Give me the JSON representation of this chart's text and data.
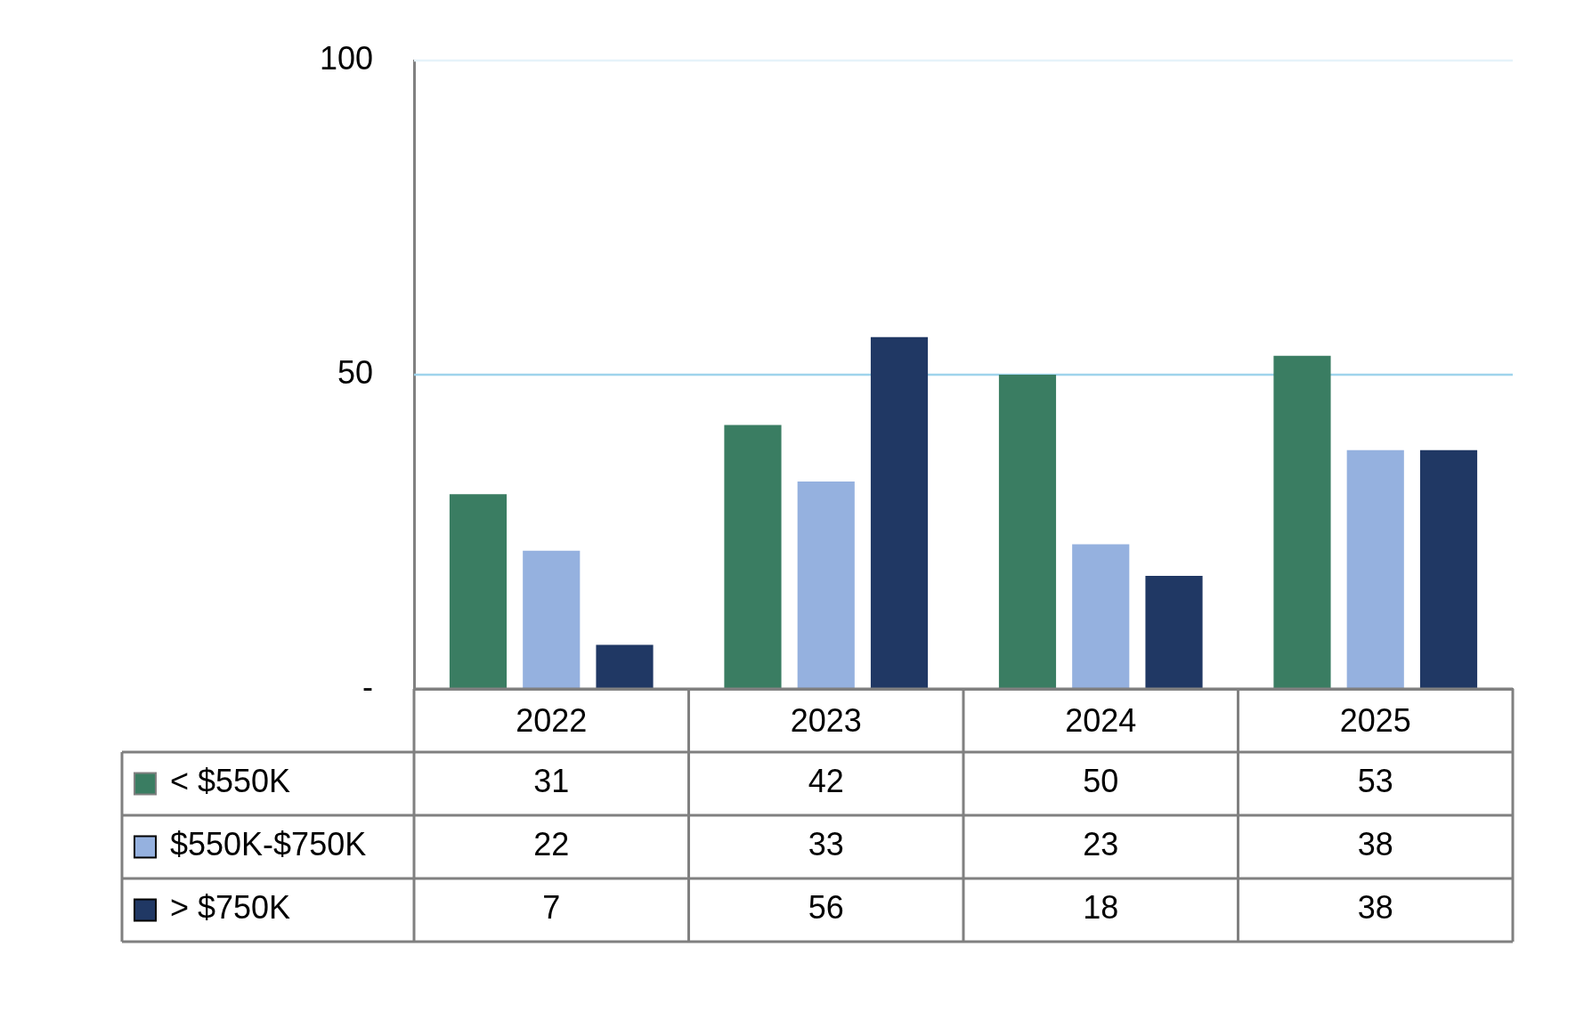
{
  "chart_data": {
    "type": "bar",
    "categories": [
      "2022",
      "2023",
      "2024",
      "2025"
    ],
    "series": [
      {
        "name": "< $550K",
        "color": "#3a7d62",
        "values": [
          31,
          42,
          50,
          53
        ]
      },
      {
        "name": "$550K-$750K",
        "color": "#95b1df",
        "values": [
          22,
          33,
          23,
          38
        ]
      },
      {
        "name": "> $750K",
        "color": "#203864",
        "values": [
          7,
          56,
          18,
          38
        ]
      }
    ],
    "ylim": [
      0,
      100
    ],
    "yticks": [
      {
        "value": 0,
        "label": "-"
      },
      50,
      100
    ],
    "ref_lines": [
      {
        "axis": "y",
        "value": 50,
        "color": "#9fd4ec"
      },
      {
        "axis": "y",
        "value": 100,
        "color": "#e6f3fa"
      }
    ],
    "legend": "bottom",
    "data_labels": true
  }
}
